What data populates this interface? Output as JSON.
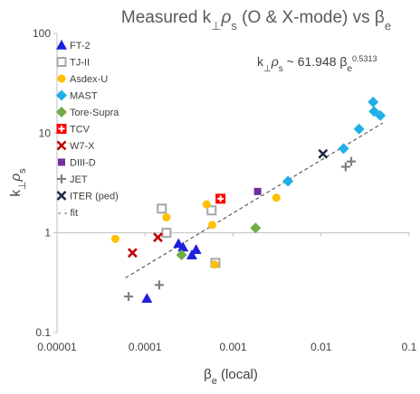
{
  "chart_data": {
    "type": "scatter",
    "title": {
      "prefix": "Measured k",
      "perp": "⊥",
      "rho": "ρ",
      "rho_sub": "s",
      "middle": " (O & X-mode) vs β",
      "beta_sub": "e"
    },
    "xlabel": {
      "main": "β",
      "sub": "e",
      "suffix": " (local)"
    },
    "ylabel": {
      "main": "k",
      "perp": "⊥",
      "rho": "ρ",
      "rho_sub": "s"
    },
    "x_scale": "log",
    "y_scale": "log",
    "xlim": [
      1e-05,
      0.1
    ],
    "ylim": [
      0.1,
      100
    ],
    "x_ticks": [
      {
        "value": 1e-05,
        "label": "0.00001"
      },
      {
        "value": 0.0001,
        "label": "0.0001"
      },
      {
        "value": 0.001,
        "label": "0.001"
      },
      {
        "value": 0.01,
        "label": "0.01"
      },
      {
        "value": 0.1,
        "label": "0.1"
      }
    ],
    "y_ticks": [
      {
        "value": 0.1,
        "label": "0.1"
      },
      {
        "value": 1,
        "label": "1"
      },
      {
        "value": 10,
        "label": "10"
      },
      {
        "value": 100,
        "label": "100"
      }
    ],
    "grid": "none",
    "legend_position": "top-left",
    "fit_annotation": {
      "k": "k",
      "perp": "⊥",
      "rho": "ρ",
      "rho_sub": "s",
      "tilde": " ~ 61.948 β",
      "beta_sub": "e",
      "exponent": "0.5313"
    },
    "fit": {
      "name": "fit",
      "coefficient": 61.948,
      "exponent": 0.5313,
      "x_range": [
        6e-05,
        0.05
      ],
      "color": "#404040"
    },
    "series": [
      {
        "name": "FT-2",
        "marker": "triangle",
        "color": "#1f1fe0",
        "points": [
          [
            0.000105,
            0.22
          ],
          [
            0.00024,
            0.78
          ],
          [
            0.00027,
            0.72
          ],
          [
            0.00034,
            0.6
          ],
          [
            0.00038,
            0.68
          ]
        ]
      },
      {
        "name": "TJ-II",
        "marker": "square-open",
        "color": "#a6a6a6",
        "points": [
          [
            0.000155,
            1.75
          ],
          [
            0.000175,
            1.0
          ],
          [
            0.00057,
            1.68
          ],
          [
            0.00063,
            0.5
          ]
        ]
      },
      {
        "name": "Asdex-U",
        "marker": "circle",
        "color": "#ffc000",
        "points": [
          [
            4.6e-05,
            0.87
          ],
          [
            0.000175,
            1.43
          ],
          [
            0.0005,
            1.93
          ],
          [
            0.00058,
            1.2
          ],
          [
            0.00062,
            0.48
          ],
          [
            0.0031,
            2.25
          ]
        ]
      },
      {
        "name": "MAST",
        "marker": "diamond",
        "color": "#1fb0e8",
        "points": [
          [
            0.0042,
            3.3
          ],
          [
            0.018,
            7.0
          ],
          [
            0.027,
            11.0
          ],
          [
            0.039,
            20.5
          ],
          [
            0.04,
            16.5
          ],
          [
            0.047,
            15.0
          ]
        ]
      },
      {
        "name": "Tore-Supra",
        "marker": "diamond",
        "color": "#70ad47",
        "points": [
          [
            0.00026,
            0.6
          ],
          [
            0.0018,
            1.12
          ]
        ]
      },
      {
        "name": "TCV",
        "marker": "square-cross",
        "color": "#ff0000",
        "points": [
          [
            0.00072,
            2.2
          ]
        ]
      },
      {
        "name": "W7-X",
        "marker": "x",
        "color": "#c00000",
        "points": [
          [
            7.2e-05,
            0.63
          ],
          [
            0.00014,
            0.9
          ]
        ]
      },
      {
        "name": "DIII-D",
        "marker": "square",
        "color": "#7030a0",
        "points": [
          [
            0.0019,
            2.6
          ]
        ]
      },
      {
        "name": "JET",
        "marker": "plus",
        "color": "#808080",
        "points": [
          [
            6.5e-05,
            0.23
          ],
          [
            0.000145,
            0.3
          ],
          [
            0.019,
            4.6
          ],
          [
            0.022,
            5.2
          ]
        ]
      },
      {
        "name": "ITER (ped)",
        "marker": "x",
        "color": "#1f2a44",
        "points": [
          [
            0.0105,
            6.2
          ]
        ]
      }
    ],
    "legend_fit_label": "- - fit"
  }
}
